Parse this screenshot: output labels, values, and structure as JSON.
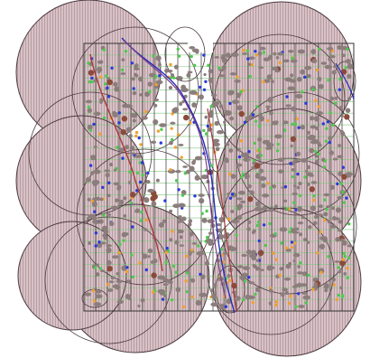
{
  "map": {
    "colors": {
      "background": "#ffffff",
      "circle_fill": "#d7c2c6",
      "hatch_line": "#b89ca3",
      "circle_outline": "#4a3a3f",
      "grid_major": "#333333",
      "grid_minor": "#7ec87e",
      "path_blue": "#2a2ab8",
      "path_red": "#a83a3a",
      "path_purple": "#7a3f8a"
    },
    "dot_colors": {
      "gray": "#8b7d7b",
      "green": "#4fc94f",
      "orange": "#f0a030",
      "blue": "#2a3ad8",
      "brown": "#8b4a3a"
    },
    "grid": {
      "rows": 23,
      "cols": 23
    },
    "coverage_circles": 9,
    "paths": [
      "blue",
      "red",
      "purple"
    ]
  }
}
